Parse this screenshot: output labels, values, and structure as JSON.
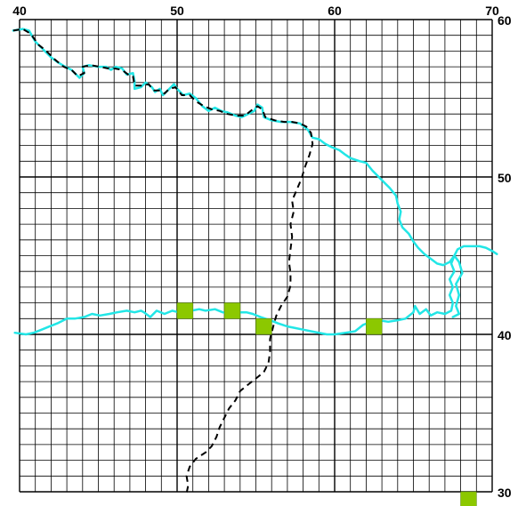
{
  "grid": {
    "x_range": [
      40,
      70
    ],
    "y_range": [
      30,
      60
    ],
    "minor_step": 1,
    "major_step": 10,
    "x_tick_labels": [
      {
        "value": 40,
        "label": "40"
      },
      {
        "value": 50,
        "label": "50"
      },
      {
        "value": 60,
        "label": "60"
      },
      {
        "value": 70,
        "label": "70"
      }
    ],
    "y_tick_labels": [
      {
        "value": 60,
        "label": "60"
      },
      {
        "value": 50,
        "label": "50"
      },
      {
        "value": 40,
        "label": "40"
      },
      {
        "value": 30,
        "label": "30"
      }
    ]
  },
  "colors": {
    "grid": "#000000",
    "river": "#22e6e6",
    "border": "#000000",
    "marker": "#8cc800"
  },
  "river_north": [
    [
      39.6,
      59.3
    ],
    [
      40.2,
      59.4
    ],
    [
      40.6,
      59.3
    ],
    [
      41.0,
      58.6
    ],
    [
      41.5,
      58.1
    ],
    [
      42.0,
      57.6
    ],
    [
      42.4,
      57.3
    ],
    [
      42.9,
      57.0
    ],
    [
      43.3,
      56.8
    ],
    [
      43.6,
      56.5
    ],
    [
      43.8,
      56.3
    ],
    [
      44.1,
      56.6
    ],
    [
      44.0,
      57.0
    ],
    [
      44.4,
      57.1
    ],
    [
      45.0,
      57.0
    ],
    [
      45.5,
      57.0
    ],
    [
      45.8,
      56.8
    ],
    [
      46.1,
      57.0
    ],
    [
      46.5,
      56.9
    ],
    [
      46.8,
      56.5
    ],
    [
      47.2,
      56.6
    ],
    [
      47.3,
      56.1
    ],
    [
      47.3,
      55.6
    ],
    [
      47.7,
      55.7
    ],
    [
      48.0,
      56.0
    ],
    [
      48.4,
      55.7
    ],
    [
      48.6,
      55.4
    ],
    [
      48.9,
      55.6
    ],
    [
      49.1,
      55.2
    ],
    [
      49.4,
      55.5
    ],
    [
      49.8,
      55.9
    ],
    [
      50.0,
      55.6
    ],
    [
      50.4,
      55.2
    ],
    [
      50.8,
      55.3
    ],
    [
      51.2,
      55.0
    ],
    [
      51.6,
      54.5
    ],
    [
      52.0,
      54.2
    ],
    [
      52.4,
      54.4
    ],
    [
      52.8,
      54.2
    ],
    [
      53.2,
      54.1
    ],
    [
      53.7,
      53.9
    ],
    [
      54.1,
      53.8
    ],
    [
      54.5,
      54.0
    ],
    [
      54.9,
      54.2
    ],
    [
      55.1,
      54.6
    ],
    [
      55.4,
      54.4
    ],
    [
      55.5,
      53.8
    ],
    [
      56.0,
      53.6
    ],
    [
      56.6,
      53.5
    ],
    [
      57.2,
      53.5
    ],
    [
      57.8,
      53.4
    ],
    [
      58.3,
      53.0
    ],
    [
      58.6,
      52.5
    ],
    [
      59.0,
      52.4
    ],
    [
      59.4,
      52.1
    ],
    [
      59.8,
      51.9
    ],
    [
      60.3,
      51.7
    ],
    [
      60.7,
      51.4
    ],
    [
      61.0,
      51.2
    ],
    [
      61.6,
      51.0
    ],
    [
      62.0,
      50.9
    ],
    [
      62.4,
      50.4
    ],
    [
      62.8,
      50.0
    ],
    [
      63.2,
      49.6
    ],
    [
      63.5,
      49.3
    ],
    [
      63.9,
      48.8
    ],
    [
      64.0,
      48.3
    ],
    [
      64.2,
      47.8
    ],
    [
      64.1,
      47.3
    ],
    [
      64.3,
      46.8
    ],
    [
      64.7,
      46.4
    ],
    [
      65.0,
      45.9
    ],
    [
      65.3,
      45.5
    ],
    [
      65.7,
      45.1
    ],
    [
      66.1,
      44.8
    ],
    [
      66.5,
      44.5
    ],
    [
      66.9,
      44.4
    ],
    [
      67.3,
      44.6
    ],
    [
      67.6,
      45.0
    ],
    [
      67.8,
      45.4
    ],
    [
      68.2,
      45.6
    ],
    [
      68.7,
      45.6
    ],
    [
      69.2,
      45.6
    ],
    [
      69.6,
      45.5
    ],
    [
      70.0,
      45.3
    ],
    [
      70.3,
      45.1
    ]
  ],
  "river_east": [
    [
      67.6,
      45.0
    ],
    [
      67.4,
      44.5
    ],
    [
      67.6,
      44.0
    ],
    [
      67.3,
      43.5
    ],
    [
      67.5,
      43.0
    ],
    [
      67.3,
      42.5
    ],
    [
      67.5,
      42.0
    ],
    [
      67.4,
      41.5
    ],
    [
      67.0,
      41.3
    ],
    [
      66.5,
      41.4
    ],
    [
      66.1,
      41.2
    ],
    [
      65.8,
      41.6
    ],
    [
      65.4,
      41.3
    ],
    [
      65.1,
      41.8
    ],
    [
      65.0,
      41.4
    ],
    [
      64.5,
      41.0
    ],
    [
      64.0,
      40.9
    ],
    [
      63.4,
      40.8
    ],
    [
      62.8,
      40.9
    ],
    [
      62.3,
      40.8
    ],
    [
      61.8,
      40.6
    ],
    [
      61.3,
      40.2
    ],
    [
      60.7,
      40.1
    ],
    [
      60.0,
      40.0
    ],
    [
      59.5,
      40.0
    ],
    [
      59.0,
      40.1
    ],
    [
      58.5,
      40.2
    ],
    [
      58.0,
      40.3
    ],
    [
      57.5,
      40.4
    ],
    [
      57.0,
      40.5
    ],
    [
      56.4,
      40.7
    ],
    [
      55.9,
      40.9
    ],
    [
      55.3,
      41.1
    ],
    [
      54.8,
      41.3
    ],
    [
      54.4,
      41.4
    ],
    [
      53.9,
      41.4
    ],
    [
      53.4,
      41.3
    ],
    [
      52.9,
      41.4
    ],
    [
      52.4,
      41.6
    ],
    [
      51.8,
      41.5
    ],
    [
      51.4,
      41.6
    ],
    [
      50.9,
      41.5
    ],
    [
      50.6,
      41.2
    ],
    [
      50.1,
      41.4
    ],
    [
      49.7,
      41.5
    ],
    [
      49.2,
      41.3
    ],
    [
      48.7,
      41.5
    ],
    [
      48.3,
      41.1
    ],
    [
      47.9,
      41.4
    ],
    [
      47.7,
      41.5
    ],
    [
      47.3,
      41.4
    ],
    [
      46.8,
      41.5
    ],
    [
      46.2,
      41.4
    ],
    [
      45.7,
      41.3
    ],
    [
      45.1,
      41.2
    ],
    [
      44.6,
      41.3
    ],
    [
      44.1,
      41.1
    ],
    [
      43.5,
      41.0
    ],
    [
      43.0,
      41.0
    ],
    [
      42.4,
      40.7
    ],
    [
      41.9,
      40.5
    ],
    [
      41.4,
      40.3
    ],
    [
      40.9,
      40.1
    ],
    [
      40.4,
      40.0
    ],
    [
      39.7,
      40.1
    ]
  ],
  "river_east_loop": [
    [
      67.6,
      45.0
    ],
    [
      67.9,
      44.6
    ],
    [
      68.1,
      43.9
    ],
    [
      67.7,
      43.2
    ],
    [
      67.9,
      42.5
    ],
    [
      67.7,
      41.8
    ],
    [
      67.9,
      41.3
    ],
    [
      67.5,
      41.1
    ]
  ],
  "border": [
    [
      39.6,
      59.3
    ],
    [
      40.2,
      59.4
    ],
    [
      40.7,
      59.1
    ],
    [
      41.2,
      58.4
    ],
    [
      41.7,
      58.0
    ],
    [
      42.2,
      57.5
    ],
    [
      42.8,
      57.0
    ],
    [
      43.3,
      56.8
    ],
    [
      43.7,
      56.4
    ],
    [
      44.1,
      56.6
    ],
    [
      44.0,
      57.0
    ],
    [
      44.5,
      57.1
    ],
    [
      45.1,
      57.0
    ],
    [
      45.6,
      56.9
    ],
    [
      46.0,
      56.9
    ],
    [
      46.5,
      56.8
    ],
    [
      46.9,
      56.5
    ],
    [
      47.2,
      56.4
    ],
    [
      47.3,
      55.8
    ],
    [
      47.8,
      55.8
    ],
    [
      48.2,
      55.9
    ],
    [
      48.5,
      55.5
    ],
    [
      48.9,
      55.5
    ],
    [
      49.2,
      55.3
    ],
    [
      49.5,
      55.6
    ],
    [
      49.9,
      55.7
    ],
    [
      50.3,
      55.2
    ],
    [
      50.8,
      55.2
    ],
    [
      51.2,
      54.8
    ],
    [
      51.7,
      54.5
    ],
    [
      52.2,
      54.3
    ],
    [
      52.7,
      54.2
    ],
    [
      53.2,
      54.0
    ],
    [
      53.8,
      53.9
    ],
    [
      54.3,
      53.9
    ],
    [
      54.8,
      54.3
    ],
    [
      55.1,
      54.5
    ],
    [
      55.4,
      54.3
    ],
    [
      55.6,
      53.8
    ],
    [
      56.2,
      53.6
    ],
    [
      56.8,
      53.5
    ],
    [
      57.3,
      53.5
    ],
    [
      57.8,
      53.4
    ],
    [
      58.2,
      53.2
    ],
    [
      58.5,
      52.8
    ],
    [
      58.6,
      52.1
    ],
    [
      58.4,
      51.4
    ],
    [
      58.1,
      50.6
    ],
    [
      57.9,
      49.9
    ],
    [
      57.6,
      49.2
    ],
    [
      57.3,
      48.5
    ],
    [
      57.4,
      47.8
    ],
    [
      57.2,
      47.0
    ],
    [
      57.3,
      46.2
    ],
    [
      57.2,
      45.4
    ],
    [
      57.1,
      44.6
    ],
    [
      57.2,
      43.9
    ],
    [
      57.2,
      43.1
    ],
    [
      57.0,
      42.4
    ],
    [
      56.6,
      41.8
    ],
    [
      56.3,
      41.2
    ],
    [
      56.1,
      40.5
    ],
    [
      55.9,
      39.7
    ],
    [
      55.9,
      38.9
    ],
    [
      55.8,
      38.2
    ],
    [
      55.5,
      37.6
    ],
    [
      55.0,
      37.2
    ],
    [
      54.5,
      36.8
    ],
    [
      54.0,
      36.4
    ],
    [
      53.7,
      35.8
    ],
    [
      53.3,
      35.3
    ],
    [
      53.0,
      34.7
    ],
    [
      52.7,
      34.1
    ],
    [
      52.5,
      33.5
    ],
    [
      52.2,
      32.9
    ],
    [
      51.8,
      32.5
    ],
    [
      51.2,
      32.1
    ],
    [
      50.8,
      31.6
    ],
    [
      50.6,
      31.0
    ],
    [
      50.7,
      30.4
    ],
    [
      50.6,
      29.9
    ]
  ],
  "markers": [
    [
      50.5,
      41.5
    ],
    [
      53.5,
      41.5
    ],
    [
      55.5,
      40.5
    ],
    [
      62.5,
      40.5
    ],
    [
      68.5,
      29.5
    ]
  ]
}
